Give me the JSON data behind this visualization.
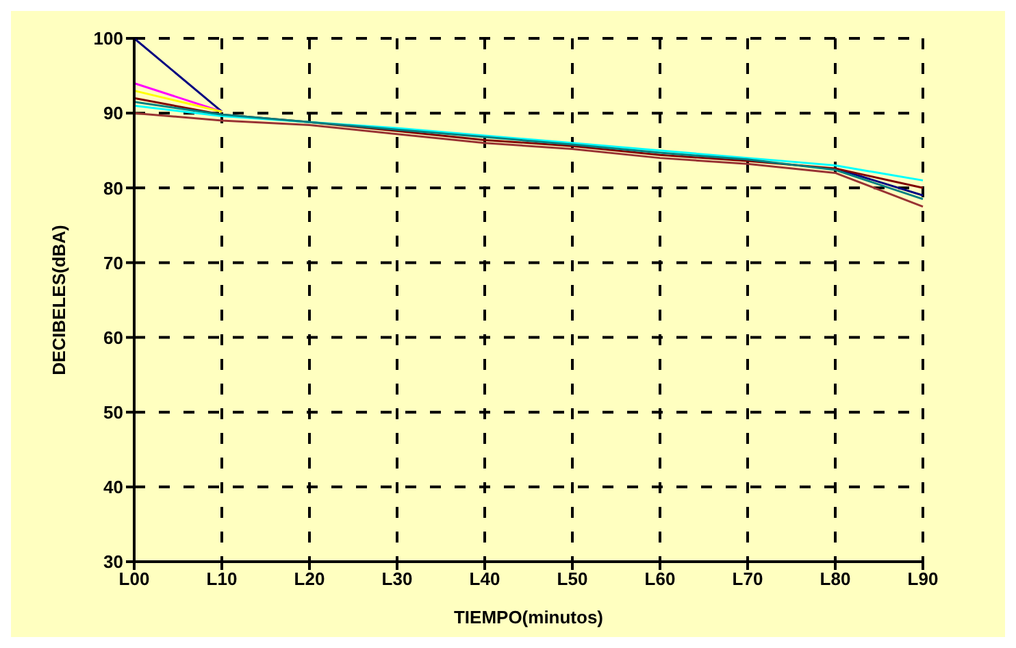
{
  "chart_data": {
    "type": "line",
    "xlabel": "TIEMPO(minutos)",
    "ylabel": "DECIBELES(dBA)",
    "categories": [
      "L00",
      "L10",
      "L20",
      "L30",
      "L40",
      "L50",
      "L60",
      "L70",
      "L80",
      "L90"
    ],
    "series": [
      {
        "color": "#000080",
        "values": [
          100,
          90.2,
          null,
          null,
          null,
          null,
          null,
          null,
          82.6,
          79
        ]
      },
      {
        "color": "#ff00ff",
        "values": [
          94,
          90.2,
          null,
          null,
          null,
          null,
          null,
          null,
          null,
          null
        ]
      },
      {
        "color": "#ffff00",
        "values": [
          93,
          90.2,
          null,
          null,
          null,
          null,
          null,
          null,
          null,
          null
        ]
      },
      {
        "color": "#800000",
        "values": [
          92,
          89.8,
          88.8,
          87.6,
          86.4,
          85.6,
          84.4,
          83.6,
          82.6,
          80
        ]
      },
      {
        "color": "#00ffff",
        "values": [
          91,
          89.6,
          88.8,
          88,
          87,
          86,
          85,
          84,
          83,
          81
        ]
      },
      {
        "color": "#008080",
        "values": [
          91.5,
          89.8,
          88.8,
          87.8,
          86.8,
          85.8,
          84.7,
          83.8,
          82.4,
          78.5
        ]
      },
      {
        "color": "#993333",
        "values": [
          90,
          89,
          88.4,
          87.2,
          86,
          85.2,
          84,
          83.2,
          82,
          77.5
        ]
      }
    ],
    "ylim": [
      30,
      100
    ],
    "yticks": [
      30,
      40,
      50,
      60,
      70,
      80,
      90,
      100
    ],
    "grid": true,
    "marker": "none",
    "line_style": "solid",
    "legend": false
  }
}
